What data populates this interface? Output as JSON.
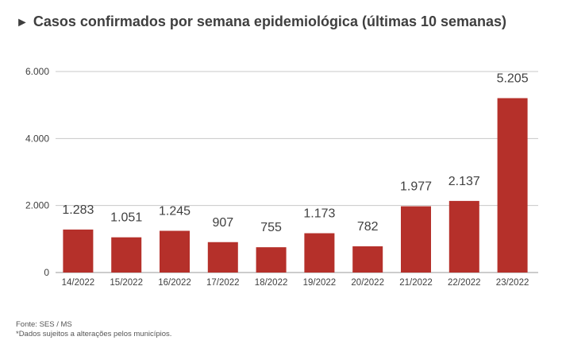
{
  "header": {
    "marker": "►",
    "title": "Casos confirmados por semana epidemiológica (últimas 10 semanas)"
  },
  "chart_data": {
    "type": "bar",
    "title": "Casos confirmados por semana epidemiológica (últimas 10 semanas)",
    "categories": [
      "14/2022",
      "15/2022",
      "16/2022",
      "17/2022",
      "18/2022",
      "19/2022",
      "20/2022",
      "21/2022",
      "22/2022",
      "23/2022"
    ],
    "values": [
      1283,
      1051,
      1245,
      907,
      755,
      1173,
      782,
      1977,
      2137,
      5205
    ],
    "value_labels": [
      "1.283",
      "1.051",
      "1.245",
      "907",
      "755",
      "1.173",
      "782",
      "1.977",
      "2.137",
      "5.205"
    ],
    "ylim": [
      0,
      6000
    ],
    "yticks": [
      0,
      2000,
      4000,
      6000
    ],
    "ytick_labels": [
      "0",
      "2.000",
      "4.000",
      "6.000"
    ],
    "grid": true,
    "bar_color": "#b5302a",
    "grid_color": "#c8c8c8"
  },
  "footer": {
    "source": "Fonte: SES / MS",
    "note": "*Dados sujeitos a alterações pelos municípios."
  }
}
